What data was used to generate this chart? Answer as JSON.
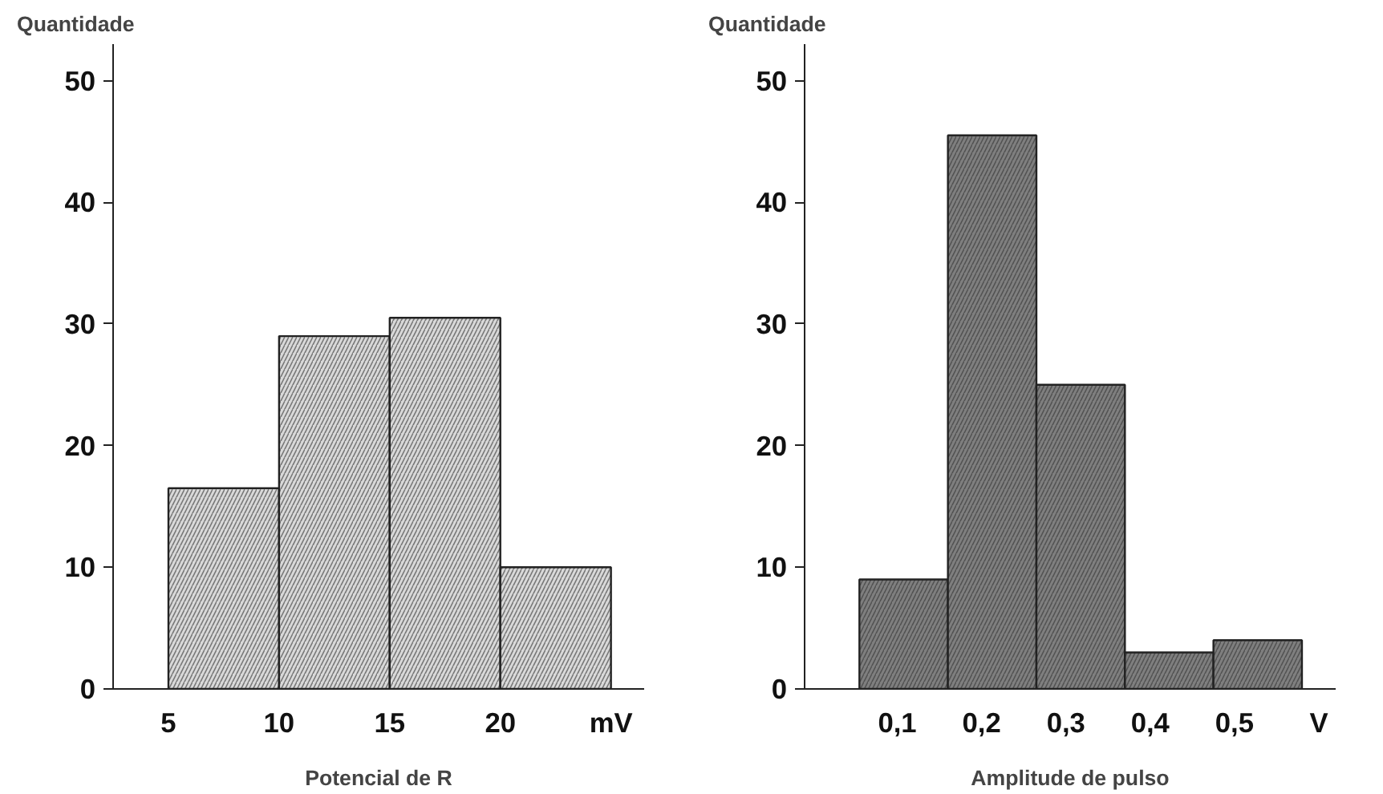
{
  "chart_data": [
    {
      "type": "histogram",
      "ylabel": "Quantidade",
      "xlabel": "Potencial de R",
      "bins": [
        5,
        10,
        15,
        20,
        25
      ],
      "values": [
        16.5,
        29,
        30.5,
        10
      ],
      "color": "#d9d9d9",
      "xlim": [
        2.5,
        26.5
      ],
      "xticks": [
        5,
        10,
        15,
        20,
        {
          "value": 25,
          "label": "mV"
        }
      ],
      "ylim": [
        0,
        53
      ],
      "yticks": [
        0,
        10,
        20,
        30,
        40,
        50
      ],
      "grid": false
    },
    {
      "type": "histogram",
      "ylabel": "Quantidade",
      "xlabel": "Amplitude de pulso",
      "bins": [
        0.055,
        0.16,
        0.265,
        0.37,
        0.475,
        0.58
      ],
      "values": [
        9,
        45.5,
        25,
        3,
        4
      ],
      "color": "#7f7f7f",
      "xlim": [
        -0.01,
        0.62
      ],
      "xticks": [
        {
          "value": 0.1,
          "label": "0,1"
        },
        {
          "value": 0.2,
          "label": "0,2"
        },
        {
          "value": 0.3,
          "label": "0,3"
        },
        {
          "value": 0.4,
          "label": "0,4"
        },
        {
          "value": 0.5,
          "label": "0,5"
        },
        {
          "value": 0.6,
          "label": "V"
        }
      ],
      "ylim": [
        0,
        53
      ],
      "yticks": [
        0,
        10,
        20,
        30,
        40,
        50
      ],
      "grid": false
    }
  ]
}
